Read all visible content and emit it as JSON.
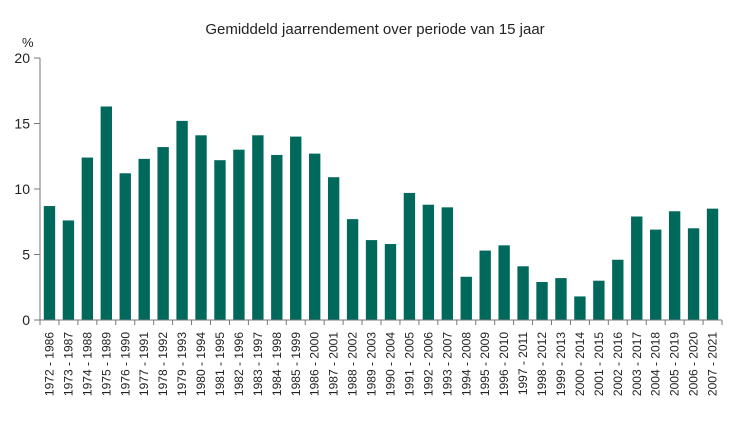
{
  "chart_data": {
    "type": "bar",
    "title": "Gemiddeld jaarrendement over periode van 15 jaar",
    "ylabel": "%",
    "ylim": [
      0,
      20
    ],
    "yticks": [
      0,
      5,
      10,
      15,
      20
    ],
    "bar_color": "#00695c",
    "categories": [
      "1972 - 1986",
      "1973 - 1987",
      "1974 - 1988",
      "1975 - 1989",
      "1976 - 1990",
      "1977 - 1991",
      "1978 - 1992",
      "1979 - 1993",
      "1980 - 1994",
      "1981 - 1995",
      "1982 - 1996",
      "1983 - 1997",
      "1984 - 1998",
      "1985 - 1999",
      "1986 - 2000",
      "1987 - 2001",
      "1988 - 2002",
      "1989 - 2003",
      "1990 - 2004",
      "1991 - 2005",
      "1992 - 2006",
      "1993 - 2007",
      "1994 - 2008",
      "1995 - 2009",
      "1996 - 2010",
      "1997 - 2011",
      "1998 - 2012",
      "1999 - 2013",
      "2000 - 2014",
      "2001 - 2015",
      "2002 - 2016",
      "2003 - 2017",
      "2004 - 2018",
      "2005 - 2019",
      "2006 - 2020",
      "2007 - 2021"
    ],
    "values": [
      8.7,
      7.6,
      12.4,
      16.3,
      11.2,
      12.3,
      13.2,
      15.2,
      14.1,
      12.2,
      13.0,
      14.1,
      12.6,
      14.0,
      12.7,
      10.9,
      7.7,
      6.1,
      5.8,
      9.7,
      8.8,
      8.6,
      3.3,
      5.3,
      5.7,
      4.1,
      2.9,
      3.2,
      1.8,
      3.0,
      4.6,
      7.9,
      6.9,
      8.3,
      7.0,
      8.5
    ]
  }
}
